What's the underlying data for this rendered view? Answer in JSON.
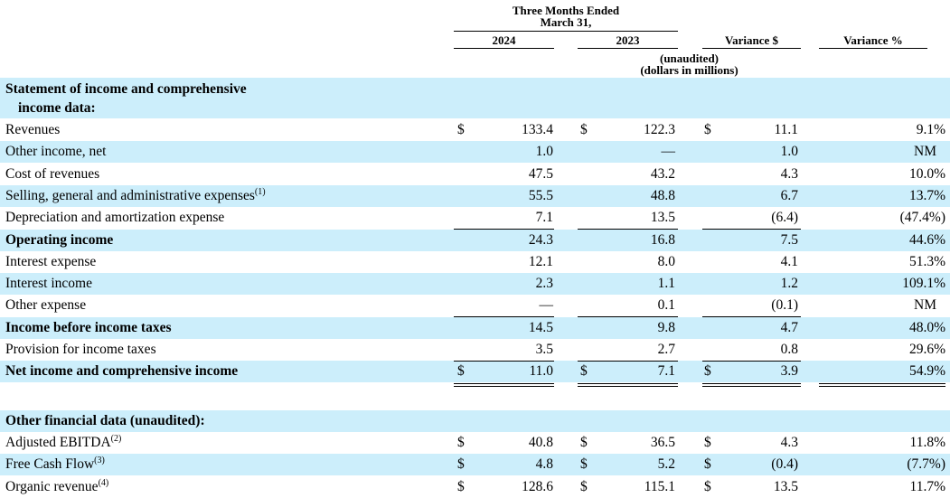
{
  "header": {
    "period_line1": "Three Months Ended",
    "period_line2": "March 31,",
    "col_2024": "2024",
    "col_2023": "2023",
    "col_var_dollar": "Variance $",
    "col_var_pct": "Variance %",
    "note_unaudited": "(unaudited)",
    "note_units": "(dollars in millions)"
  },
  "section1": {
    "title_line1": "Statement of income and comprehensive",
    "title_line2": "income data:"
  },
  "rows": [
    {
      "label": "Revenues",
      "sup": "",
      "bold": false,
      "shade": false,
      "cur": "$",
      "v2024": "133.4",
      "v2023": "122.3",
      "vd": "11.1",
      "vp": "9.1%"
    },
    {
      "label": "Other income, net",
      "sup": "",
      "bold": false,
      "shade": true,
      "cur": "",
      "v2024": "1.0",
      "v2023": "—",
      "vd": "1.0",
      "vp": "NM"
    },
    {
      "label": "Cost of revenues",
      "sup": "",
      "bold": false,
      "shade": false,
      "cur": "",
      "v2024": "47.5",
      "v2023": "43.2",
      "vd": "4.3",
      "vp": "10.0%"
    },
    {
      "label": "Selling, general and administrative expenses",
      "sup": "(1)",
      "bold": false,
      "shade": true,
      "cur": "",
      "v2024": "55.5",
      "v2023": "48.8",
      "vd": "6.7",
      "vp": "13.7%"
    },
    {
      "label": "Depreciation and amortization expense",
      "sup": "",
      "bold": false,
      "shade": false,
      "cur": "",
      "v2024": "7.1",
      "v2023": "13.5",
      "vd": "(6.4)",
      "vp": "(47.4%)"
    },
    {
      "label": "Operating income",
      "sup": "",
      "bold": true,
      "shade": true,
      "cur": "",
      "v2024": "24.3",
      "v2023": "16.8",
      "vd": "7.5",
      "vp": "44.6%"
    },
    {
      "label": "Interest expense",
      "sup": "",
      "bold": false,
      "shade": false,
      "cur": "",
      "v2024": "12.1",
      "v2023": "8.0",
      "vd": "4.1",
      "vp": "51.3%"
    },
    {
      "label": "Interest income",
      "sup": "",
      "bold": false,
      "shade": true,
      "cur": "",
      "v2024": "2.3",
      "v2023": "1.1",
      "vd": "1.2",
      "vp": "109.1%"
    },
    {
      "label": "Other expense",
      "sup": "",
      "bold": false,
      "shade": false,
      "cur": "",
      "v2024": "—",
      "v2023": "0.1",
      "vd": "(0.1)",
      "vp": "NM"
    },
    {
      "label": "Income before income taxes",
      "sup": "",
      "bold": true,
      "shade": true,
      "cur": "",
      "v2024": "14.5",
      "v2023": "9.8",
      "vd": "4.7",
      "vp": "48.0%"
    },
    {
      "label": "Provision for income taxes",
      "sup": "",
      "bold": false,
      "shade": false,
      "cur": "",
      "v2024": "3.5",
      "v2023": "2.7",
      "vd": "0.8",
      "vp": "29.6%"
    },
    {
      "label": "Net income and comprehensive income",
      "sup": "",
      "bold": true,
      "shade": true,
      "cur": "$",
      "v2024": "11.0",
      "v2023": "7.1",
      "vd": "3.9",
      "vp": "54.9%"
    }
  ],
  "section2": {
    "title": "Other financial data (unaudited):"
  },
  "rows2": [
    {
      "label": "Adjusted EBITDA",
      "sup": "(2)",
      "bold": false,
      "shade": false,
      "cur": "$",
      "v2024": "40.8",
      "v2023": "36.5",
      "vd": "4.3",
      "vp": "11.8%"
    },
    {
      "label": "Free Cash Flow",
      "sup": "(3)",
      "bold": false,
      "shade": true,
      "cur": "$",
      "v2024": "4.8",
      "v2023": "5.2",
      "vd": "(0.4)",
      "vp": "(7.7%)"
    },
    {
      "label": "Organic revenue",
      "sup": "(4)",
      "bold": false,
      "shade": false,
      "cur": "$",
      "v2024": "128.6",
      "v2023": "115.1",
      "vd": "13.5",
      "vp": "11.7%"
    }
  ],
  "colors": {
    "row_shade": "#cceefb",
    "text": "#000000"
  }
}
